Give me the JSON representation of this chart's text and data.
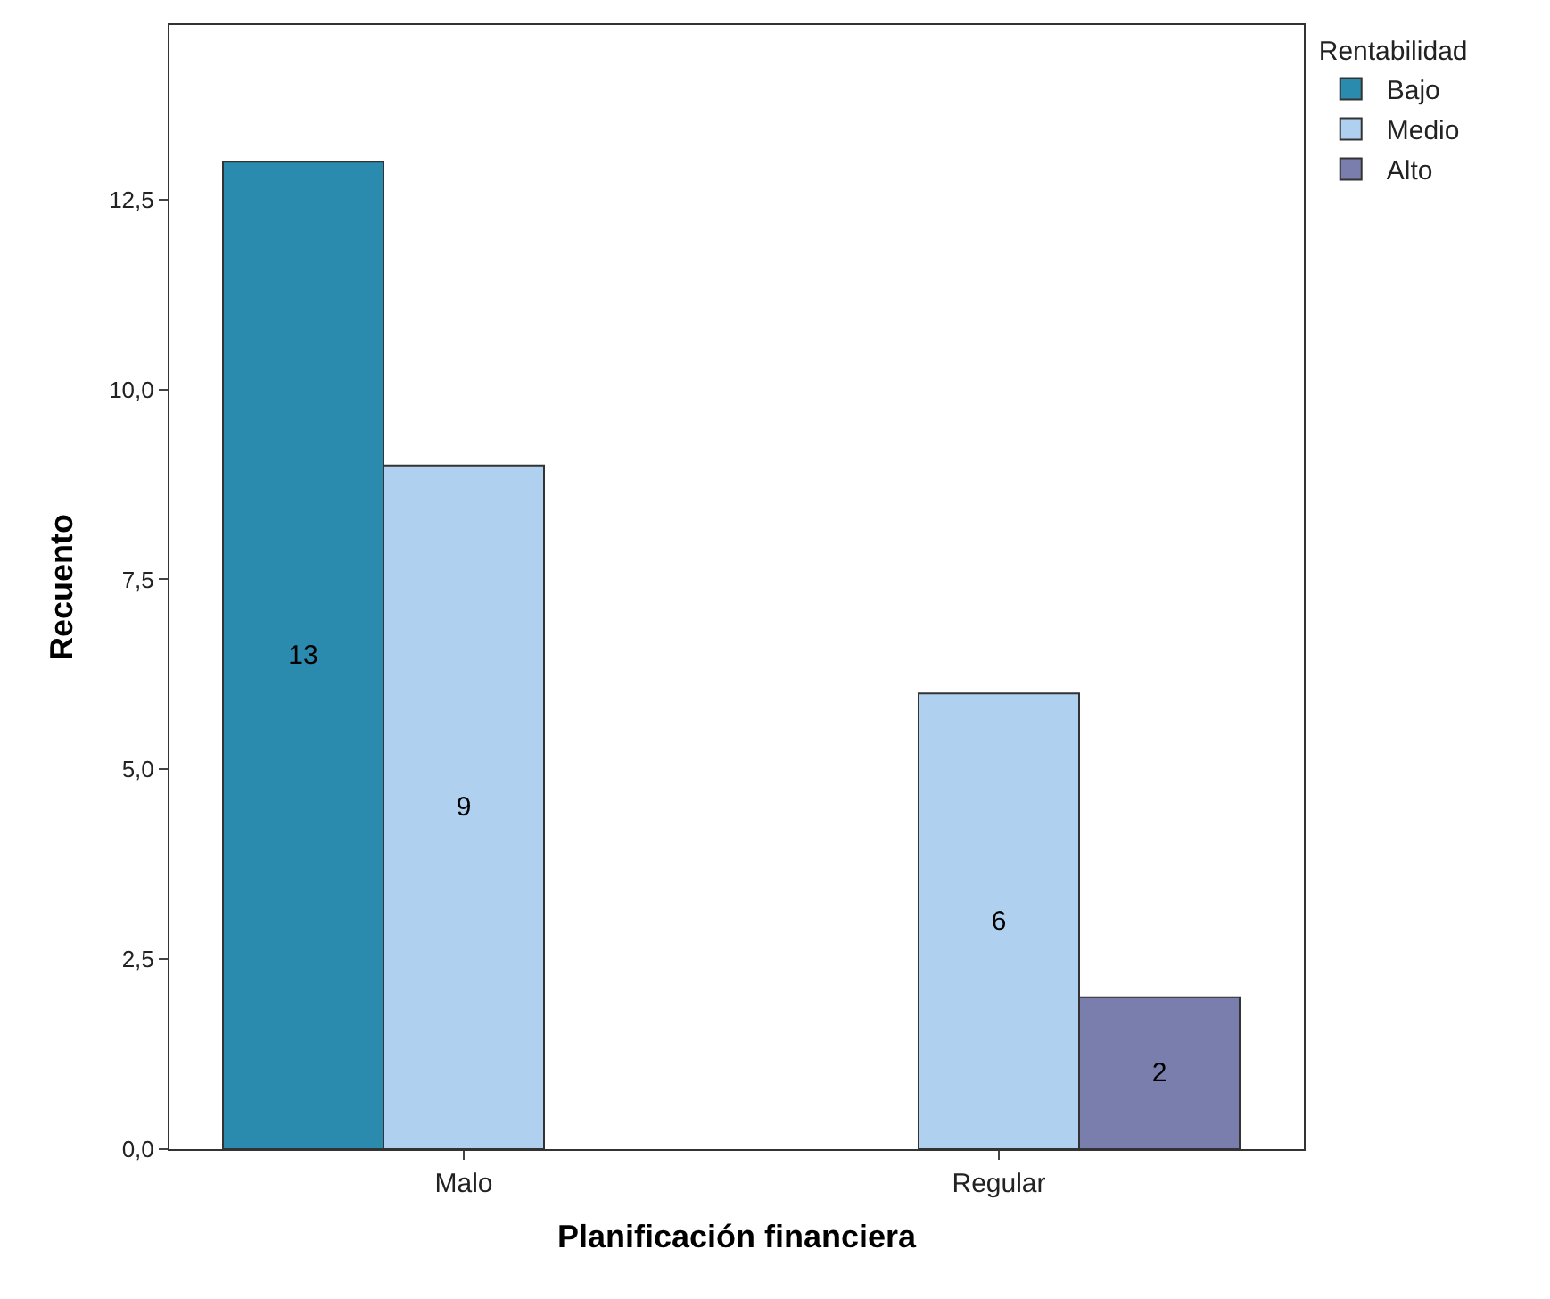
{
  "chart_data": {
    "type": "bar",
    "xlabel": "Planificación financiera",
    "ylabel": "Recuento",
    "legend_title": "Rentabilidad",
    "categories": [
      "Malo",
      "Regular"
    ],
    "series": [
      {
        "name": "Bajo",
        "color": "#2a8bae",
        "values": [
          13,
          null
        ]
      },
      {
        "name": "Medio",
        "color": "#afd1ef",
        "values": [
          9,
          6
        ]
      },
      {
        "name": "Alto",
        "color": "#7a7eac",
        "values": [
          null,
          2
        ]
      }
    ],
    "ylim": [
      0,
      14.8
    ],
    "yticks": [
      {
        "value": 0,
        "label": "0,0"
      },
      {
        "value": 2.5,
        "label": "2,5"
      },
      {
        "value": 5,
        "label": "5,0"
      },
      {
        "value": 7.5,
        "label": "7,5"
      },
      {
        "value": 10,
        "label": "10,0"
      },
      {
        "value": 12.5,
        "label": "12,5"
      }
    ],
    "data_labels": true,
    "legend": "top right"
  }
}
